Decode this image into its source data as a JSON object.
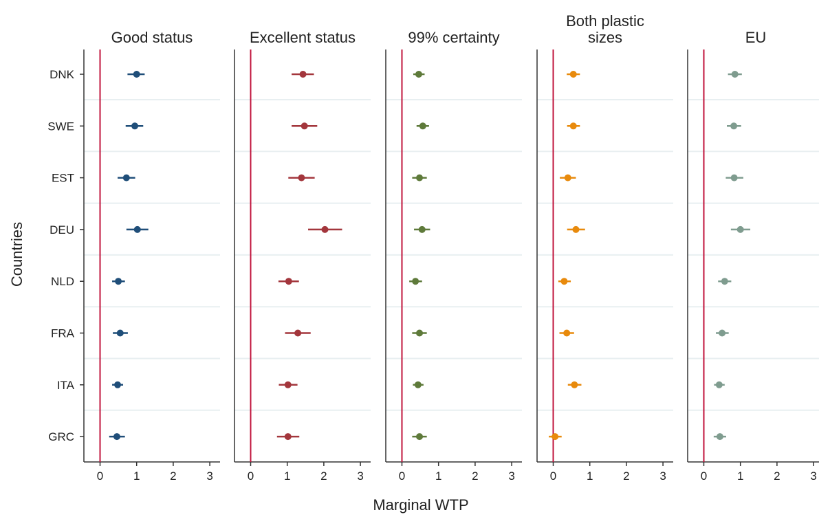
{
  "chart_data": {
    "type": "scatter",
    "subtype": "dot-whisker small multiples",
    "xlabel": "Marginal WTP",
    "ylabel": "Countries",
    "xlim": [
      -0.4,
      3.3
    ],
    "xticks": [
      0,
      1,
      2,
      3
    ],
    "reference_line_x": 0,
    "grid": "horizontal separators between rows",
    "legend": "none",
    "categories": [
      "DNK",
      "SWE",
      "EST",
      "DEU",
      "NLD",
      "FRA",
      "ITA",
      "GRC"
    ],
    "panels": [
      {
        "title": [
          "Good status"
        ],
        "color": "#1f4e79",
        "estimates": [
          1.0,
          0.95,
          0.72,
          1.02,
          0.5,
          0.55,
          0.48,
          0.46
        ],
        "ci_low": [
          0.75,
          0.7,
          0.48,
          0.72,
          0.33,
          0.35,
          0.33,
          0.25
        ],
        "ci_high": [
          1.22,
          1.18,
          0.96,
          1.32,
          0.68,
          0.76,
          0.63,
          0.68
        ]
      },
      {
        "title": [
          "Excellent status"
        ],
        "color": "#a3363c",
        "estimates": [
          1.43,
          1.47,
          1.39,
          2.03,
          1.04,
          1.29,
          1.02,
          1.02
        ],
        "ci_low": [
          1.12,
          1.12,
          1.03,
          1.57,
          0.76,
          0.94,
          0.77,
          0.72
        ],
        "ci_high": [
          1.73,
          1.82,
          1.75,
          2.5,
          1.32,
          1.64,
          1.28,
          1.33
        ]
      },
      {
        "title": [
          "99% certainty"
        ],
        "color": "#5e7a3a",
        "estimates": [
          0.46,
          0.57,
          0.48,
          0.55,
          0.37,
          0.48,
          0.44,
          0.48
        ],
        "ci_low": [
          0.31,
          0.4,
          0.28,
          0.33,
          0.2,
          0.28,
          0.3,
          0.28
        ],
        "ci_high": [
          0.62,
          0.74,
          0.68,
          0.77,
          0.55,
          0.68,
          0.59,
          0.68
        ]
      },
      {
        "title": [
          "Both plastic",
          "sizes"
        ],
        "color": "#e88a0c",
        "estimates": [
          0.55,
          0.55,
          0.4,
          0.62,
          0.3,
          0.37,
          0.58,
          0.05
        ],
        "ci_low": [
          0.37,
          0.38,
          0.18,
          0.38,
          0.14,
          0.17,
          0.4,
          -0.12
        ],
        "ci_high": [
          0.73,
          0.73,
          0.62,
          0.87,
          0.48,
          0.57,
          0.77,
          0.23
        ]
      },
      {
        "title": [
          "EU"
        ],
        "color": "#7f9c8f",
        "estimates": [
          0.85,
          0.82,
          0.83,
          1.0,
          0.57,
          0.5,
          0.42,
          0.44
        ],
        "ci_low": [
          0.66,
          0.63,
          0.6,
          0.74,
          0.39,
          0.33,
          0.28,
          0.27
        ],
        "ci_high": [
          1.04,
          1.02,
          1.08,
          1.27,
          0.75,
          0.68,
          0.57,
          0.61
        ]
      }
    ]
  }
}
